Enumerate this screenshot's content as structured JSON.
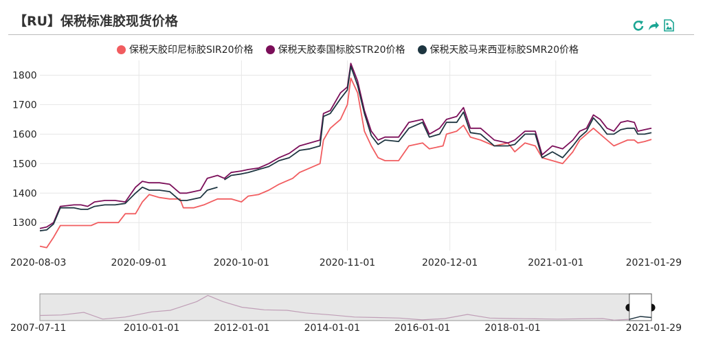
{
  "title": "【RU】保税标准胶现货价格",
  "toolbar": {
    "refresh_icon": "refresh-icon",
    "share_icon": "share-icon",
    "save_image_icon": "image-icon"
  },
  "colors": {
    "sir20": "#f15c5f",
    "str20": "#7b0e59",
    "smr20": "#1d3540",
    "grid": "#e6e6e6",
    "axis_text": "#222222"
  },
  "chart_data": {
    "type": "line",
    "title": "【RU】保税标准胶现货价格",
    "xlabel": "",
    "ylabel": "",
    "y_ticks": [
      1300,
      1400,
      1500,
      1600,
      1700,
      1800
    ],
    "ylim": [
      1205,
      1850
    ],
    "x_ticks": [
      "2020-08-03",
      "2020-09-01",
      "2020-10-01",
      "2020-11-01",
      "2020-12-01",
      "2021-01-01",
      "2021-01-29"
    ],
    "xlim": [
      "2020-08-03",
      "2021-01-29"
    ],
    "grid": true,
    "legend_position": "top",
    "series": [
      {
        "name": "保税天胶印尼标胶SIR20价格",
        "color": "#f15c5f",
        "points": [
          [
            "2020-08-03",
            1220
          ],
          [
            "2020-08-05",
            1215
          ],
          [
            "2020-08-07",
            1250
          ],
          [
            "2020-08-09",
            1290
          ],
          [
            "2020-08-13",
            1290
          ],
          [
            "2020-08-18",
            1290
          ],
          [
            "2020-08-20",
            1300
          ],
          [
            "2020-08-26",
            1300
          ],
          [
            "2020-08-28",
            1330
          ],
          [
            "2020-08-31",
            1330
          ],
          [
            "2020-09-02",
            1370
          ],
          [
            "2020-09-04",
            1395
          ],
          [
            "2020-09-07",
            1385
          ],
          [
            "2020-09-10",
            1380
          ],
          [
            "2020-09-13",
            1380
          ],
          [
            "2020-09-14",
            1350
          ],
          [
            "2020-09-17",
            1350
          ],
          [
            "2020-09-20",
            1360
          ],
          [
            "2020-09-22",
            1370
          ],
          [
            "2020-09-24",
            1380
          ],
          [
            "2020-09-28",
            1380
          ],
          [
            "2020-10-01",
            1370
          ],
          [
            "2020-10-03",
            1390
          ],
          [
            "2020-10-06",
            1395
          ],
          [
            "2020-10-09",
            1410
          ],
          [
            "2020-10-12",
            1430
          ],
          [
            "2020-10-14",
            1440
          ],
          [
            "2020-10-16",
            1450
          ],
          [
            "2020-10-18",
            1470
          ],
          [
            "2020-10-20",
            1480
          ],
          [
            "2020-10-24",
            1500
          ],
          [
            "2020-10-25",
            1580
          ],
          [
            "2020-10-27",
            1620
          ],
          [
            "2020-10-30",
            1650
          ],
          [
            "2020-11-01",
            1700
          ],
          [
            "2020-11-02",
            1790
          ],
          [
            "2020-11-04",
            1740
          ],
          [
            "2020-11-06",
            1610
          ],
          [
            "2020-11-08",
            1560
          ],
          [
            "2020-11-10",
            1520
          ],
          [
            "2020-11-12",
            1510
          ],
          [
            "2020-11-16",
            1510
          ],
          [
            "2020-11-19",
            1560
          ],
          [
            "2020-11-23",
            1570
          ],
          [
            "2020-11-25",
            1550
          ],
          [
            "2020-11-29",
            1560
          ],
          [
            "2020-11-30",
            1600
          ],
          [
            "2020-12-03",
            1610
          ],
          [
            "2020-12-05",
            1630
          ],
          [
            "2020-12-07",
            1590
          ],
          [
            "2020-12-10",
            1580
          ],
          [
            "2020-12-14",
            1560
          ],
          [
            "2020-12-18",
            1570
          ],
          [
            "2020-12-20",
            1540
          ],
          [
            "2020-12-23",
            1570
          ],
          [
            "2020-12-26",
            1560
          ],
          [
            "2020-12-28",
            1520
          ],
          [
            "2020-12-31",
            1510
          ],
          [
            "2021-01-03",
            1500
          ],
          [
            "2021-01-06",
            1540
          ],
          [
            "2021-01-08",
            1580
          ],
          [
            "2021-01-10",
            1600
          ],
          [
            "2021-01-12",
            1620
          ],
          [
            "2021-01-14",
            1600
          ],
          [
            "2021-01-16",
            1580
          ],
          [
            "2021-01-18",
            1560
          ],
          [
            "2021-01-20",
            1570
          ],
          [
            "2021-01-22",
            1580
          ],
          [
            "2021-01-24",
            1580
          ],
          [
            "2021-01-25",
            1570
          ],
          [
            "2021-01-27",
            1575
          ],
          [
            "2021-01-29",
            1582
          ]
        ]
      },
      {
        "name": "保税天胶泰国标胶STR20价格",
        "color": "#7b0e59",
        "points": [
          [
            "2020-08-03",
            1280
          ],
          [
            "2020-08-05",
            1285
          ],
          [
            "2020-08-07",
            1300
          ],
          [
            "2020-08-09",
            1355
          ],
          [
            "2020-08-13",
            1360
          ],
          [
            "2020-08-15",
            1360
          ],
          [
            "2020-08-17",
            1355
          ],
          [
            "2020-08-19",
            1370
          ],
          [
            "2020-08-22",
            1375
          ],
          [
            "2020-08-25",
            1375
          ],
          [
            "2020-08-28",
            1370
          ],
          [
            "2020-08-31",
            1420
          ],
          [
            "2020-09-02",
            1440
          ],
          [
            "2020-09-04",
            1435
          ],
          [
            "2020-09-07",
            1435
          ],
          [
            "2020-09-10",
            1430
          ],
          [
            "2020-09-13",
            1400
          ],
          [
            "2020-09-15",
            1400
          ],
          [
            "2020-09-19",
            1410
          ],
          [
            "2020-09-21",
            1450
          ],
          [
            "2020-09-24",
            1460
          ],
          [
            "2020-09-26",
            1450
          ],
          [
            "2020-09-28",
            1470
          ],
          [
            "2020-10-01",
            1475
          ],
          [
            "2020-10-03",
            1480
          ],
          [
            "2020-10-06",
            1485
          ],
          [
            "2020-10-09",
            1500
          ],
          [
            "2020-10-12",
            1520
          ],
          [
            "2020-10-15",
            1535
          ],
          [
            "2020-10-18",
            1560
          ],
          [
            "2020-10-21",
            1570
          ],
          [
            "2020-10-24",
            1580
          ],
          [
            "2020-10-25",
            1670
          ],
          [
            "2020-10-27",
            1680
          ],
          [
            "2020-10-30",
            1740
          ],
          [
            "2020-11-01",
            1760
          ],
          [
            "2020-11-02",
            1840
          ],
          [
            "2020-11-04",
            1780
          ],
          [
            "2020-11-06",
            1680
          ],
          [
            "2020-11-08",
            1610
          ],
          [
            "2020-11-10",
            1580
          ],
          [
            "2020-11-12",
            1590
          ],
          [
            "2020-11-16",
            1590
          ],
          [
            "2020-11-19",
            1640
          ],
          [
            "2020-11-23",
            1650
          ],
          [
            "2020-11-25",
            1600
          ],
          [
            "2020-11-28",
            1620
          ],
          [
            "2020-11-30",
            1650
          ],
          [
            "2020-12-03",
            1660
          ],
          [
            "2020-12-05",
            1690
          ],
          [
            "2020-12-07",
            1620
          ],
          [
            "2020-12-10",
            1620
          ],
          [
            "2020-12-14",
            1580
          ],
          [
            "2020-12-18",
            1570
          ],
          [
            "2020-12-20",
            1580
          ],
          [
            "2020-12-23",
            1610
          ],
          [
            "2020-12-26",
            1610
          ],
          [
            "2020-12-28",
            1530
          ],
          [
            "2020-12-31",
            1560
          ],
          [
            "2021-01-03",
            1550
          ],
          [
            "2021-01-06",
            1580
          ],
          [
            "2021-01-08",
            1610
          ],
          [
            "2021-01-10",
            1620
          ],
          [
            "2021-01-12",
            1665
          ],
          [
            "2021-01-14",
            1650
          ],
          [
            "2021-01-16",
            1620
          ],
          [
            "2021-01-18",
            1610
          ],
          [
            "2021-01-20",
            1640
          ],
          [
            "2021-01-22",
            1645
          ],
          [
            "2021-01-24",
            1640
          ],
          [
            "2021-01-25",
            1610
          ],
          [
            "2021-01-27",
            1615
          ],
          [
            "2021-01-29",
            1620
          ]
        ]
      },
      {
        "name": "保税天胶马来西亚标胶SMR20价格",
        "color": "#1d3540",
        "points": [
          [
            "2020-08-03",
            1272
          ],
          [
            "2020-08-05",
            1275
          ],
          [
            "2020-08-07",
            1295
          ],
          [
            "2020-08-09",
            1350
          ],
          [
            "2020-08-13",
            1350
          ],
          [
            "2020-08-15",
            1345
          ],
          [
            "2020-08-17",
            1345
          ],
          [
            "2020-08-19",
            1355
          ],
          [
            "2020-08-22",
            1360
          ],
          [
            "2020-08-25",
            1360
          ],
          [
            "2020-08-28",
            1365
          ],
          [
            "2020-08-31",
            1400
          ],
          [
            "2020-09-02",
            1420
          ],
          [
            "2020-09-04",
            1410
          ],
          [
            "2020-09-07",
            1410
          ],
          [
            "2020-09-10",
            1405
          ],
          [
            "2020-09-13",
            1375
          ],
          [
            "2020-09-15",
            1375
          ],
          [
            "2020-09-19",
            1385
          ],
          [
            "2020-09-21",
            1410
          ],
          [
            "2020-09-24",
            1420
          ],
          null,
          [
            "2020-09-26",
            1445
          ],
          [
            "2020-09-28",
            1460
          ],
          [
            "2020-10-01",
            1465
          ],
          [
            "2020-10-03",
            1470
          ],
          [
            "2020-10-06",
            1480
          ],
          [
            "2020-10-09",
            1490
          ],
          [
            "2020-10-12",
            1510
          ],
          [
            "2020-10-15",
            1520
          ],
          [
            "2020-10-18",
            1545
          ],
          [
            "2020-10-21",
            1550
          ],
          [
            "2020-10-24",
            1560
          ],
          [
            "2020-10-25",
            1660
          ],
          [
            "2020-10-27",
            1670
          ],
          [
            "2020-10-30",
            1720
          ],
          [
            "2020-11-01",
            1750
          ],
          [
            "2020-11-02",
            1830
          ],
          [
            "2020-11-04",
            1765
          ],
          [
            "2020-11-06",
            1670
          ],
          [
            "2020-11-08",
            1595
          ],
          [
            "2020-11-10",
            1565
          ],
          [
            "2020-11-12",
            1580
          ],
          [
            "2020-11-16",
            1575
          ],
          [
            "2020-11-19",
            1620
          ],
          [
            "2020-11-23",
            1640
          ],
          [
            "2020-11-25",
            1590
          ],
          [
            "2020-11-28",
            1600
          ],
          [
            "2020-11-30",
            1640
          ],
          [
            "2020-12-03",
            1640
          ],
          [
            "2020-12-05",
            1675
          ],
          [
            "2020-12-07",
            1605
          ],
          [
            "2020-12-10",
            1600
          ],
          [
            "2020-12-14",
            1560
          ],
          [
            "2020-12-18",
            1560
          ],
          [
            "2020-12-20",
            1565
          ],
          [
            "2020-12-23",
            1600
          ],
          [
            "2020-12-26",
            1600
          ],
          [
            "2020-12-28",
            1520
          ],
          [
            "2020-12-31",
            1540
          ],
          [
            "2021-01-03",
            1520
          ],
          [
            "2021-01-06",
            1560
          ],
          [
            "2021-01-08",
            1590
          ],
          [
            "2021-01-10",
            1610
          ],
          [
            "2021-01-12",
            1655
          ],
          [
            "2021-01-14",
            1630
          ],
          [
            "2021-01-16",
            1600
          ],
          [
            "2021-01-18",
            1600
          ],
          [
            "2021-01-20",
            1615
          ],
          [
            "2021-01-22",
            1620
          ],
          [
            "2021-01-24",
            1620
          ],
          [
            "2021-01-25",
            1600
          ],
          [
            "2021-01-27",
            1600
          ],
          [
            "2021-01-29",
            1605
          ]
        ]
      }
    ],
    "navigator": {
      "x_ticks": [
        "2007-07-11",
        "2010-01-01",
        "2012-01-01",
        "2014-01-01",
        "2016-01-01",
        "2018-01-01",
        "2021-01-29"
      ],
      "xlim": [
        "2007-07-11",
        "2021-01-29"
      ],
      "selected_range": [
        "2020-08-03",
        "2021-01-29"
      ],
      "ylim": [
        1000,
        6200
      ],
      "points": [
        [
          "2007-07-11",
          2000
        ],
        [
          "2008-01-01",
          2100
        ],
        [
          "2008-07-01",
          2600
        ],
        [
          "2008-12-01",
          1300
        ],
        [
          "2009-06-01",
          1700
        ],
        [
          "2010-01-01",
          2700
        ],
        [
          "2010-06-01",
          3000
        ],
        [
          "2011-01-01",
          4700
        ],
        [
          "2011-04-01",
          5900
        ],
        [
          "2011-08-01",
          4700
        ],
        [
          "2012-01-01",
          3600
        ],
        [
          "2012-07-01",
          3100
        ],
        [
          "2013-01-01",
          3000
        ],
        [
          "2013-06-01",
          2500
        ],
        [
          "2014-01-01",
          2100
        ],
        [
          "2014-07-01",
          1700
        ],
        [
          "2015-01-01",
          1600
        ],
        [
          "2015-07-01",
          1500
        ],
        [
          "2016-01-01",
          1150
        ],
        [
          "2016-07-01",
          1400
        ],
        [
          "2017-01-01",
          2200
        ],
        [
          "2017-07-01",
          1500
        ],
        [
          "2018-01-01",
          1400
        ],
        [
          "2018-07-01",
          1350
        ],
        [
          "2019-01-01",
          1300
        ],
        [
          "2019-07-01",
          1350
        ],
        [
          "2020-01-01",
          1400
        ],
        [
          "2020-04-01",
          1100
        ],
        [
          "2020-08-03",
          1250
        ],
        [
          "2020-11-01",
          1800
        ],
        [
          "2021-01-29",
          1600
        ]
      ]
    }
  }
}
